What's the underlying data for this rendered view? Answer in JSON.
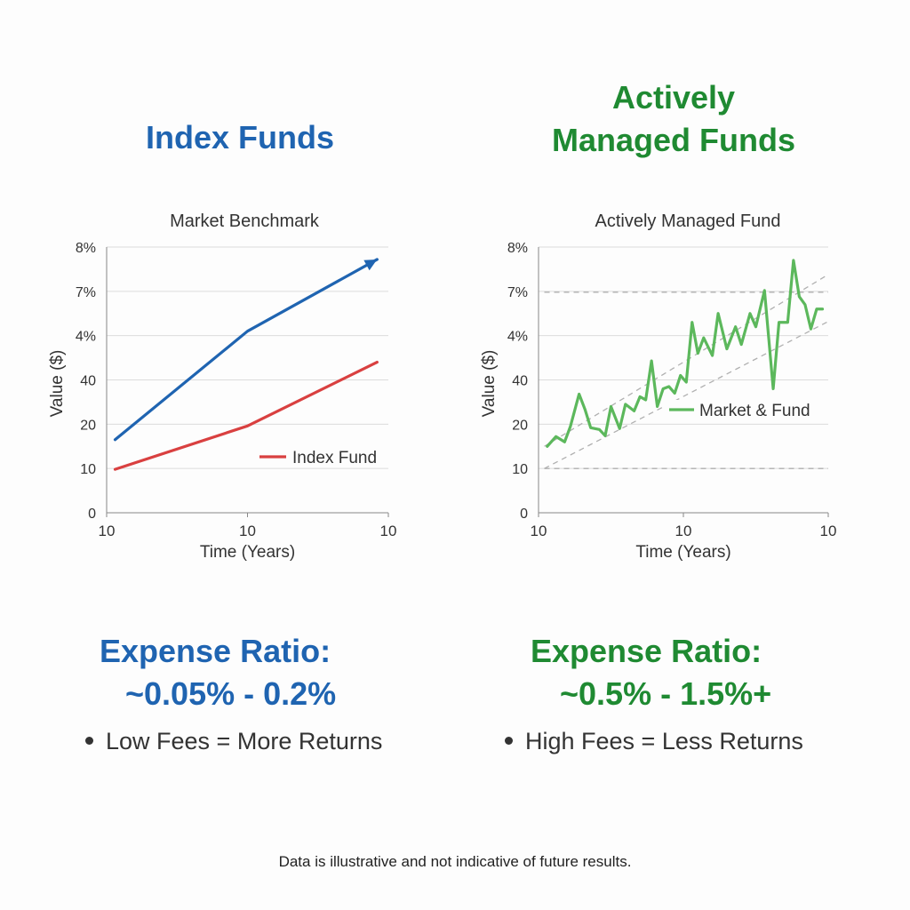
{
  "left_panel": {
    "heading": "Index Funds",
    "expense_ratio_title": "Expense Ratio:",
    "expense_ratio_range": "~0.05% - 0.2%",
    "bullet": "Low Fees = More Returns",
    "color": "#1f64b1"
  },
  "right_panel": {
    "heading_line1": "Actively",
    "heading_line2": "Managed Funds",
    "expense_ratio_title": "Expense Ratio:",
    "expense_ratio_range": "~0.5% - 1.5%+",
    "bullet": "High Fees = Less Returns",
    "color": "#1f8a32"
  },
  "footer": "Data is illustrative and not indicative of future results.",
  "chart_data": [
    {
      "type": "line",
      "title": "Market Benchmark",
      "xlabel": "Time (Years)",
      "ylabel": "Value ($)",
      "x_ticks": [
        "10",
        "10",
        "10"
      ],
      "y_ticks": [
        "0",
        "10",
        "20",
        "40",
        "4%",
        "7%",
        "8%"
      ],
      "xlim": [
        0,
        10
      ],
      "ylim": [
        0,
        6
      ],
      "grid": true,
      "legend_position": "bottom-right",
      "series": [
        {
          "color": "#1f64b1",
          "arrow": true,
          "x": [
            0.3,
            5,
            9.6
          ],
          "y": [
            1.65,
            4.1,
            5.72
          ]
        },
        {
          "name": "Index Fund",
          "color": "#d94040",
          "x": [
            0.3,
            5,
            9.6
          ],
          "y": [
            0.98,
            1.96,
            3.4
          ]
        }
      ]
    },
    {
      "type": "line",
      "title": "Actively Managed Fund",
      "xlabel": "Time (Years)",
      "ylabel": "Value ($)",
      "x_ticks": [
        "10",
        "10",
        "10"
      ],
      "y_ticks": [
        "0",
        "10",
        "20",
        "40",
        "4%",
        "7%",
        "8%"
      ],
      "xlim": [
        0,
        10
      ],
      "ylim": [
        0,
        6
      ],
      "grid": true,
      "legend_position": "center-right",
      "reference_lines": [
        {
          "style": "dashed",
          "color": "#b0b0b0",
          "x": [
            0.2,
            10
          ],
          "y": [
            1.0,
            1.0
          ]
        },
        {
          "style": "dashed",
          "color": "#b0b0b0",
          "x": [
            0.2,
            10
          ],
          "y": [
            4.98,
            4.98
          ]
        },
        {
          "style": "dashed",
          "color": "#b0b0b0",
          "x": [
            0.2,
            10
          ],
          "y": [
            1.0,
            4.32
          ]
        },
        {
          "style": "dashed",
          "color": "#b0b0b0",
          "x": [
            0.2,
            10
          ],
          "y": [
            1.5,
            5.38
          ]
        }
      ],
      "series": [
        {
          "name": "Market & Fund",
          "color": "#5cb85c",
          "x": [
            0.3,
            0.6,
            0.9,
            1.1,
            1.4,
            1.6,
            1.8,
            2.1,
            2.3,
            2.5,
            2.8,
            3.0,
            3.3,
            3.5,
            3.7,
            3.9,
            4.1,
            4.3,
            4.5,
            4.7,
            4.9,
            5.1,
            5.3,
            5.5,
            5.7,
            6.0,
            6.2,
            6.5,
            6.8,
            7.0,
            7.3,
            7.5,
            7.8,
            8.1,
            8.3,
            8.6,
            8.8,
            9.0,
            9.2,
            9.4,
            9.6,
            9.8
          ],
          "y": [
            1.5,
            1.72,
            1.6,
            1.95,
            2.68,
            2.34,
            1.92,
            1.88,
            1.74,
            2.4,
            1.9,
            2.45,
            2.3,
            2.62,
            2.55,
            3.43,
            2.4,
            2.8,
            2.85,
            2.7,
            3.1,
            2.95,
            4.3,
            3.6,
            3.95,
            3.55,
            4.5,
            3.7,
            4.2,
            3.8,
            4.5,
            4.2,
            5.02,
            2.8,
            4.3,
            4.3,
            5.7,
            4.88,
            4.7,
            4.15,
            4.6,
            4.6
          ]
        }
      ]
    }
  ]
}
